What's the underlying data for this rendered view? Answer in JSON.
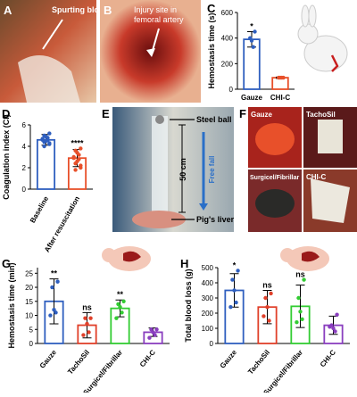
{
  "panel_labels": [
    "A",
    "B",
    "C",
    "D",
    "E",
    "F",
    "G",
    "H"
  ],
  "photo_A": {
    "annotation": "Spurting blood"
  },
  "photo_B": {
    "annotation": [
      "Injury site in",
      "femoral artery"
    ]
  },
  "photo_E": {
    "top": "Steel ball",
    "height": "50 cm",
    "motion": "Free fall",
    "bottom": "Pig's liver"
  },
  "photo_F": {
    "panels": [
      "Gauze",
      "TachoSil",
      "Surgicel/Fibrillar",
      "CHI-C"
    ]
  },
  "chart_data": [
    {
      "type": "bar",
      "ylabel": "Hemostasis time (s)",
      "categories": [
        "Gauze",
        "CHI-C"
      ],
      "values": [
        390,
        90
      ],
      "errors": [
        60,
        5
      ],
      "colors": [
        "#2f5fbf",
        "#e8502a"
      ],
      "points": [
        [
          450,
          400,
          380,
          330
        ],
        [
          90,
          90,
          90,
          90
        ]
      ],
      "annotations": [
        "*",
        null
      ],
      "ylim": [
        0,
        600
      ],
      "yticks": [
        0,
        200,
        400,
        600
      ]
    },
    {
      "type": "bar",
      "ylabel": "Coagulation index (CI)",
      "categories": [
        "Baseline",
        "After resuscitation"
      ],
      "values": [
        4.6,
        2.9
      ],
      "errors": [
        0.5,
        0.8
      ],
      "colors": [
        "#2f5fbf",
        "#e8502a"
      ],
      "points": [
        [
          5.2,
          5.0,
          4.9,
          4.8,
          4.7,
          4.6,
          4.6,
          4.5,
          4.4,
          4.3,
          4.2,
          4.0
        ],
        [
          3.8,
          3.6,
          3.4,
          3.2,
          3.0,
          2.9,
          2.8,
          2.6,
          2.4,
          2.2,
          2.0,
          1.8
        ]
      ],
      "annotations": [
        null,
        "****"
      ],
      "ylim": [
        0,
        6
      ],
      "yticks": [
        0,
        2,
        4,
        6
      ]
    },
    {
      "type": "bar",
      "ylabel": "Hemostasis time (min)",
      "categories": [
        "Gauze",
        "TachoSil",
        "Surgicel/Fibrillar",
        "CHI-C"
      ],
      "values": [
        15,
        6.5,
        12.5,
        4
      ],
      "errors": [
        8,
        4.5,
        3,
        1.5
      ],
      "colors": [
        "#2f5fbf",
        "#e0402a",
        "#33cc33",
        "#8a3fbf"
      ],
      "points": [
        [
          22,
          20,
          12,
          11,
          10
        ],
        [
          9,
          9,
          7,
          4,
          3
        ],
        [
          15,
          14,
          13,
          11,
          9
        ],
        [
          5,
          5,
          4,
          3,
          2
        ]
      ],
      "annotations": [
        "**",
        "ns",
        "**",
        null
      ],
      "ylim": [
        0,
        27
      ],
      "yticks": [
        0,
        5,
        10,
        15,
        20,
        25
      ]
    },
    {
      "type": "bar",
      "ylabel": "Total blood loss (g)",
      "categories": [
        "Gauze",
        "TachoSil",
        "Surgicel/Fibrillar",
        "CHI-C"
      ],
      "values": [
        350,
        240,
        245,
        120
      ],
      "errors": [
        110,
        110,
        140,
        60
      ],
      "colors": [
        "#2f5fbf",
        "#e0402a",
        "#33cc33",
        "#8a3fbf"
      ],
      "points": [
        [
          480,
          420,
          350,
          270,
          240
        ],
        [
          330,
          300,
          240,
          150,
          180
        ],
        [
          420,
          300,
          210,
          160,
          140
        ],
        [
          190,
          120,
          100,
          80,
          110
        ]
      ],
      "annotations": [
        "*",
        "ns",
        "ns",
        null
      ],
      "ylim": [
        0,
        500
      ],
      "yticks": [
        0,
        100,
        200,
        300,
        400,
        500
      ]
    }
  ]
}
